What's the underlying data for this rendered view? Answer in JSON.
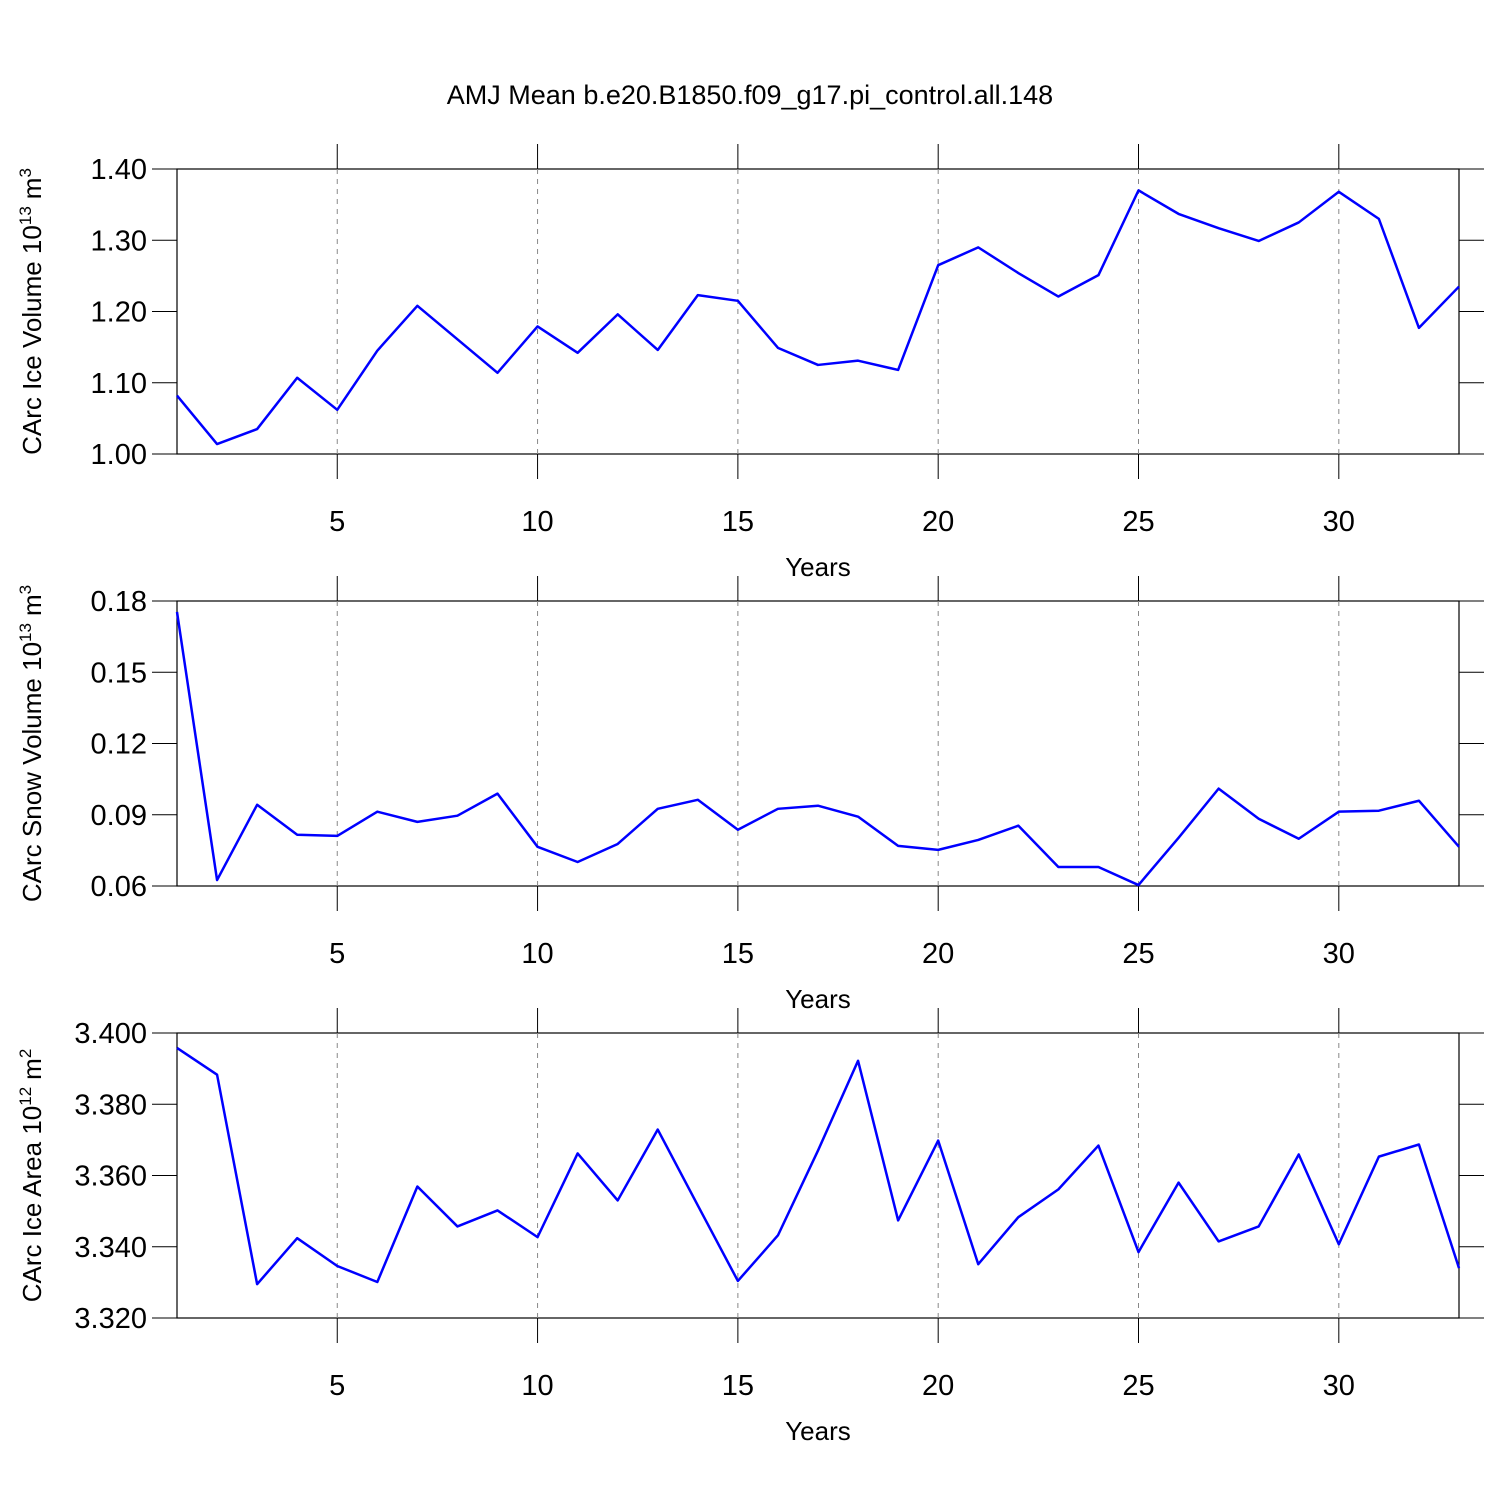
{
  "title": "AMJ Mean b.e20.B1850.f09_g17.pi_control.all.148",
  "chart_data": [
    {
      "type": "line",
      "ylabel": [
        "CArc Ice Volume 10",
        "13",
        "m",
        "3"
      ],
      "xlabel": "Years",
      "color": "#0000ff",
      "grid": true,
      "x": [
        1,
        2,
        3,
        4,
        5,
        6,
        7,
        8,
        9,
        10,
        11,
        12,
        13,
        14,
        15,
        16,
        17,
        18,
        19,
        20,
        21,
        22,
        23,
        24,
        25,
        26,
        27,
        28,
        29,
        30,
        31,
        32,
        33
      ],
      "values": [
        1.082,
        1.014,
        1.035,
        1.107,
        1.062,
        1.145,
        1.208,
        1.161,
        1.114,
        1.179,
        1.142,
        1.196,
        1.146,
        1.223,
        1.215,
        1.149,
        1.125,
        1.131,
        1.118,
        1.265,
        1.29,
        1.254,
        1.221,
        1.251,
        1.37,
        1.337,
        1.317,
        1.299,
        1.325,
        1.368,
        1.33,
        1.177,
        1.235
      ],
      "xlim": [
        1,
        33
      ],
      "xticks": [
        5,
        10,
        15,
        20,
        25,
        30
      ],
      "ylim": [
        1.0,
        1.4
      ],
      "yticks": [
        {
          "value": 1.0,
          "label": "1.00"
        },
        {
          "value": 1.1,
          "label": "1.10"
        },
        {
          "value": 1.2,
          "label": "1.20"
        },
        {
          "value": 1.3,
          "label": "1.30"
        },
        {
          "value": 1.4,
          "label": "1.40"
        }
      ]
    },
    {
      "type": "line",
      "ylabel": [
        "CArc Snow Volume 10",
        "13",
        "m",
        "3"
      ],
      "xlabel": "Years",
      "color": "#0000ff",
      "grid": true,
      "x": [
        1,
        2,
        3,
        4,
        5,
        6,
        7,
        8,
        9,
        10,
        11,
        12,
        13,
        14,
        15,
        16,
        17,
        18,
        19,
        20,
        21,
        22,
        23,
        24,
        25,
        26,
        27,
        28,
        29,
        30,
        31,
        32,
        33
      ],
      "values": [
        0.1754,
        0.0625,
        0.0942,
        0.0816,
        0.0811,
        0.0913,
        0.087,
        0.0896,
        0.0989,
        0.0765,
        0.0701,
        0.0777,
        0.0925,
        0.0963,
        0.0837,
        0.0925,
        0.0938,
        0.0892,
        0.0769,
        0.0752,
        0.0794,
        0.0854,
        0.068,
        0.068,
        0.0604,
        0.0803,
        0.101,
        0.0883,
        0.0799,
        0.0913,
        0.0917,
        0.0959,
        0.0765
      ],
      "xlim": [
        1,
        33
      ],
      "xticks": [
        5,
        10,
        15,
        20,
        25,
        30
      ],
      "ylim": [
        0.06,
        0.18
      ],
      "yticks": [
        0.06,
        0.09,
        0.12,
        0.15,
        0.18
      ]
    },
    {
      "type": "line",
      "ylabel": [
        "CArc Ice Area 10",
        "12",
        "m",
        "2"
      ],
      "xlabel": "Years",
      "color": "#0000ff",
      "grid": true,
      "x": [
        1,
        2,
        3,
        4,
        5,
        6,
        7,
        8,
        9,
        10,
        11,
        12,
        13,
        14,
        15,
        16,
        17,
        18,
        19,
        20,
        21,
        22,
        23,
        24,
        25,
        26,
        27,
        28,
        29,
        30,
        31,
        32,
        33
      ],
      "values": [
        3.3958,
        3.3883,
        3.3295,
        3.3424,
        3.3346,
        3.3301,
        3.3569,
        3.3457,
        3.3502,
        3.3427,
        3.3662,
        3.353,
        3.3729,
        3.3516,
        3.3304,
        3.3432,
        3.367,
        3.3922,
        3.3474,
        3.3698,
        3.3351,
        3.3483,
        3.3561,
        3.3684,
        3.3385,
        3.358,
        3.3415,
        3.3457,
        3.3659,
        3.3407,
        3.3653,
        3.3687,
        3.334
      ],
      "xlim": [
        1,
        33
      ],
      "xticks": [
        5,
        10,
        15,
        20,
        25,
        30
      ],
      "ylim": [
        3.32,
        3.4
      ],
      "yticks": [
        {
          "value": 3.32,
          "label": "3.320"
        },
        {
          "value": 3.34,
          "label": "3.340"
        },
        {
          "value": 3.36,
          "label": "3.360"
        },
        {
          "value": 3.38,
          "label": "3.380"
        },
        {
          "value": 3.4,
          "label": "3.400"
        }
      ]
    }
  ]
}
